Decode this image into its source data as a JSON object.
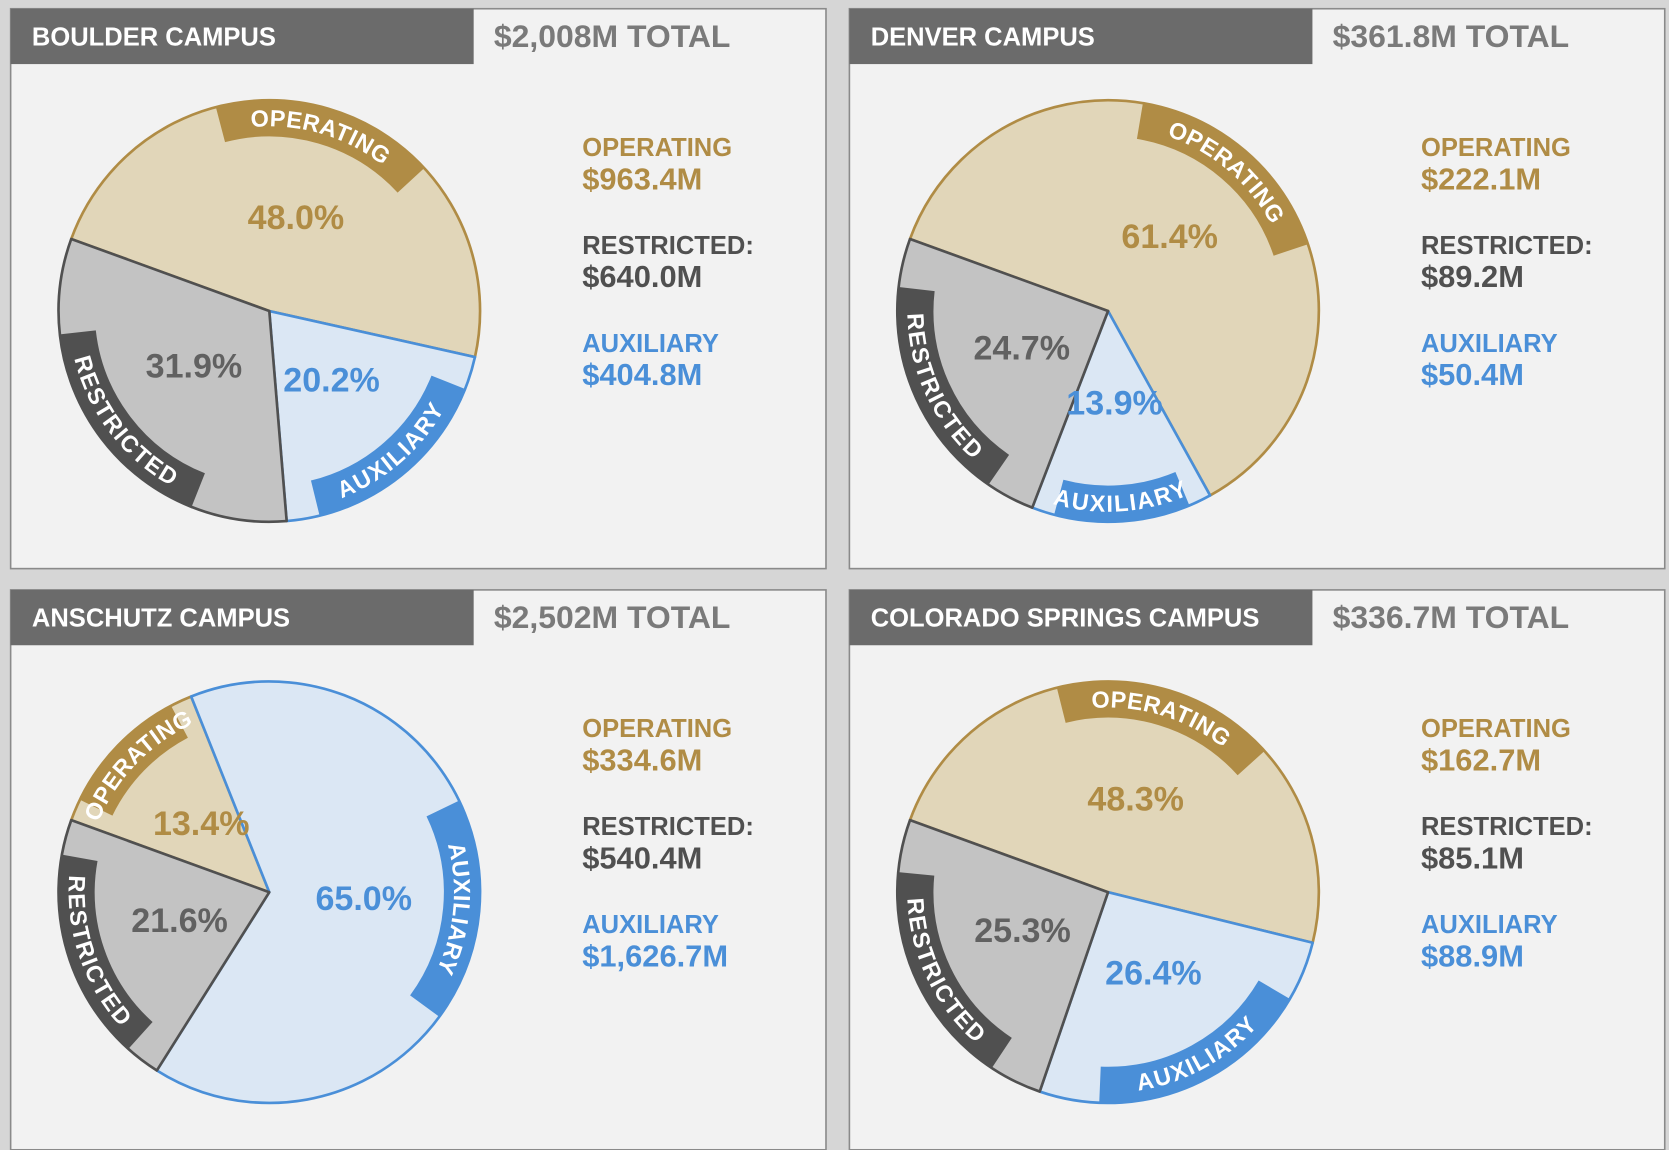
{
  "chart_data": [
    {
      "type": "pie",
      "title": "BOULDER CAMPUS",
      "total": "$2,008M TOTAL",
      "categories": [
        "OPERATING",
        "RESTRICTED",
        "AUXILIARY"
      ],
      "values": [
        48.0,
        31.9,
        20.2
      ],
      "value_labels": [
        "48.0%",
        "31.9%",
        "20.2%"
      ],
      "legend_labels": [
        "OPERATING",
        "RESTRICTED:",
        "AUXILIARY"
      ],
      "amounts": [
        "$963.4M",
        "$640.0M",
        "$404.8M"
      ],
      "colors": [
        "#b08c45",
        "#505050",
        "#4a8fd8"
      ],
      "fill_colors": [
        "#e1d6b9",
        "#c3c3c3",
        "#dbe7f4"
      ]
    },
    {
      "type": "pie",
      "title": "DENVER CAMPUS",
      "total": "$361.8M TOTAL",
      "categories": [
        "OPERATING",
        "RESTRICTED",
        "AUXILIARY"
      ],
      "values": [
        61.4,
        24.7,
        13.9
      ],
      "value_labels": [
        "61.4%",
        "24.7%",
        "13.9%"
      ],
      "legend_labels": [
        "OPERATING",
        "RESTRICTED:",
        "AUXILIARY"
      ],
      "amounts": [
        "$222.1M",
        "$89.2M",
        "$50.4M"
      ],
      "colors": [
        "#b08c45",
        "#505050",
        "#4a8fd8"
      ],
      "fill_colors": [
        "#e1d6b9",
        "#c3c3c3",
        "#dbe7f4"
      ]
    },
    {
      "type": "pie",
      "title": "ANSCHUTZ CAMPUS",
      "total": "$2,502M TOTAL",
      "categories": [
        "OPERATING",
        "RESTRICTED",
        "AUXILIARY"
      ],
      "values": [
        13.4,
        21.6,
        65.0
      ],
      "value_labels": [
        "13.4%",
        "21.6%",
        "65.0%"
      ],
      "legend_labels": [
        "OPERATING",
        "RESTRICTED:",
        "AUXILIARY"
      ],
      "amounts": [
        "$334.6M",
        "$540.4M",
        "$1,626.7M"
      ],
      "colors": [
        "#b08c45",
        "#505050",
        "#4a8fd8"
      ],
      "fill_colors": [
        "#e1d6b9",
        "#c3c3c3",
        "#dbe7f4"
      ]
    },
    {
      "type": "pie",
      "title": "COLORADO SPRINGS CAMPUS",
      "total": "$336.7M TOTAL",
      "categories": [
        "OPERATING",
        "RESTRICTED",
        "AUXILIARY"
      ],
      "values": [
        48.3,
        25.3,
        26.4
      ],
      "value_labels": [
        "48.3%",
        "25.3%",
        "26.4%"
      ],
      "legend_labels": [
        "OPERATING",
        "RESTRICTED:",
        "AUXILIARY"
      ],
      "amounts": [
        "$162.7M",
        "$85.1M",
        "$88.9M"
      ],
      "colors": [
        "#b08c45",
        "#505050",
        "#4a8fd8"
      ],
      "fill_colors": [
        "#e1d6b9",
        "#c3c3c3",
        "#dbe7f4"
      ]
    }
  ]
}
